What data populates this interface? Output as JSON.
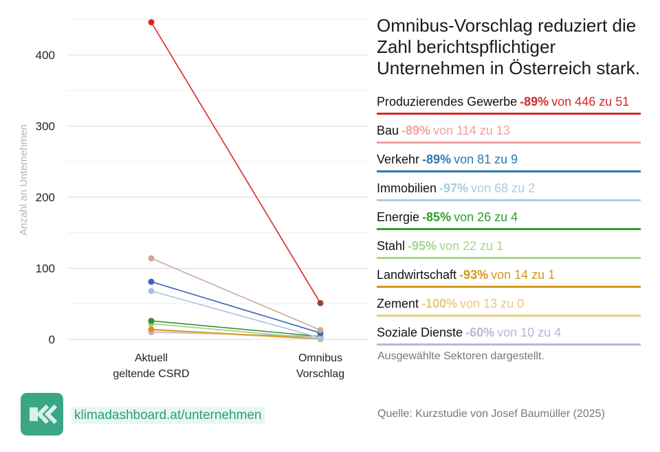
{
  "title": "Omnibus-Vorschlag reduziert die Zahl berichtspflichtiger Unternehmen in Österreich stark.",
  "note": "Ausgewählte Sektoren dargestellt.",
  "source": "Quelle: Kurzstudie von Josef Baumüller (2025)",
  "brand": {
    "url": "klimadashboard.at/unternehmen",
    "logo_icon": "double-chevron-left-icon"
  },
  "chart_data": {
    "type": "line",
    "title": "Omnibus-Vorschlag reduziert die Zahl berichtspflichtiger Unternehmen in Österreich stark.",
    "ylabel": "Anzahl an Unternehmen",
    "ylim": [
      0,
      450
    ],
    "yticks": [
      "0",
      "100",
      "200",
      "300",
      "400"
    ],
    "categories": [
      {
        "line1": "Aktuell",
        "line2": "geltende CSRD"
      },
      {
        "line1": "Omnibus",
        "line2": "Vorschlag"
      }
    ],
    "series": [
      {
        "name": "Produzierendes Gewerbe",
        "pct": "-89%",
        "change": "von 446 zu 51",
        "values": [
          446,
          51
        ],
        "color": "#d62728",
        "dot_end": "#8b4a2e"
      },
      {
        "name": "Bau",
        "pct": "-89%",
        "change": "von 114 zu 13",
        "values": [
          114,
          13
        ],
        "color": "#f0a1a1",
        "line": "#c9aa9a"
      },
      {
        "name": "Verkehr",
        "pct": "-89%",
        "change": "von 81 zu 9",
        "values": [
          81,
          9
        ],
        "color": "#2a7ab0",
        "line": "#3a62b5"
      },
      {
        "name": "Immobilien",
        "pct": "-97%",
        "change": "von 68 zu 2",
        "values": [
          68,
          2
        ],
        "color": "#a6cfe0",
        "line": "#a9c0e6"
      },
      {
        "name": "Energie",
        "pct": "-85%",
        "change": "von 26 zu 4",
        "values": [
          26,
          4
        ],
        "color": "#2ca02c",
        "line": "#3b8f2b"
      },
      {
        "name": "Stahl",
        "pct": "-95%",
        "change": "von 22 zu 1",
        "values": [
          22,
          1
        ],
        "color": "#a7d48c",
        "line": "#9ccf86"
      },
      {
        "name": "Landwirtschaft",
        "pct": "-93%",
        "change": "von 14 zu 1",
        "values": [
          14,
          1
        ],
        "color": "#d4961c",
        "line": "#d4961c"
      },
      {
        "name": "Zement",
        "pct": "-100%",
        "change": "von 13 zu 0",
        "values": [
          13,
          0
        ],
        "color": "#ecc97a",
        "line": "#e8c070"
      },
      {
        "name": "Soziale Dienste",
        "pct": "-60%",
        "change": "von 10 zu 4",
        "values": [
          10,
          4
        ],
        "color": "#c2b2d6",
        "line": "#c2b2d6"
      }
    ]
  }
}
